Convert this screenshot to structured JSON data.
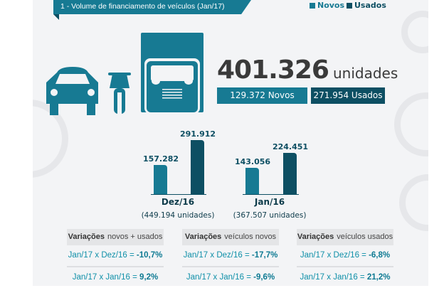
{
  "header": {
    "title": "1 -  Volume de financiamento de veículos (Jan/17)"
  },
  "legend": [
    {
      "label": "Novos",
      "color": "#177a93"
    },
    {
      "label": "Usados",
      "color": "#0d4f63"
    }
  ],
  "icons": [
    "car-icon",
    "motorcycle-icon",
    "truck-icon"
  ],
  "total": {
    "value": "401.326",
    "unit": "unidades",
    "novos": "129.372 Novos",
    "usados": "271.954 Usados"
  },
  "chart_data": {
    "type": "bar",
    "categories": [
      "Dez/16",
      "Jan/16"
    ],
    "category_subtitles": [
      "(449.194 unidades)",
      "(367.507 unidades)"
    ],
    "series": [
      {
        "name": "Novos",
        "values": [
          157282,
          143056
        ],
        "labels": [
          "157.282",
          "143.056"
        ],
        "color": "#177a93"
      },
      {
        "name": "Usados",
        "values": [
          291912,
          224451
        ],
        "labels": [
          "291.912",
          "224.451"
        ],
        "color": "#0d4f63"
      }
    ]
  },
  "variations": [
    {
      "title": "Variações",
      "subtitle": "novos + usados",
      "rows": [
        {
          "text": "Jan/17 x Dez/16 = ",
          "value": "-10,7%"
        },
        {
          "text": "Jan/17 x Jan/16 = ",
          "value": "9,2%"
        }
      ]
    },
    {
      "title": "Variações",
      "subtitle": "veículos novos",
      "rows": [
        {
          "text": "Jan/17 x Dez/16 = ",
          "value": "-17,7%"
        },
        {
          "text": "Jan/17 x Jan/16 = ",
          "value": "-9,6%"
        }
      ]
    },
    {
      "title": "Variações",
      "subtitle": "veículos usados",
      "rows": [
        {
          "text": "Jan/17 x Dez/16 = ",
          "value": "-6,8%"
        },
        {
          "text": "Jan/17 x Jan/16 = ",
          "value": "21,2%"
        }
      ]
    }
  ]
}
